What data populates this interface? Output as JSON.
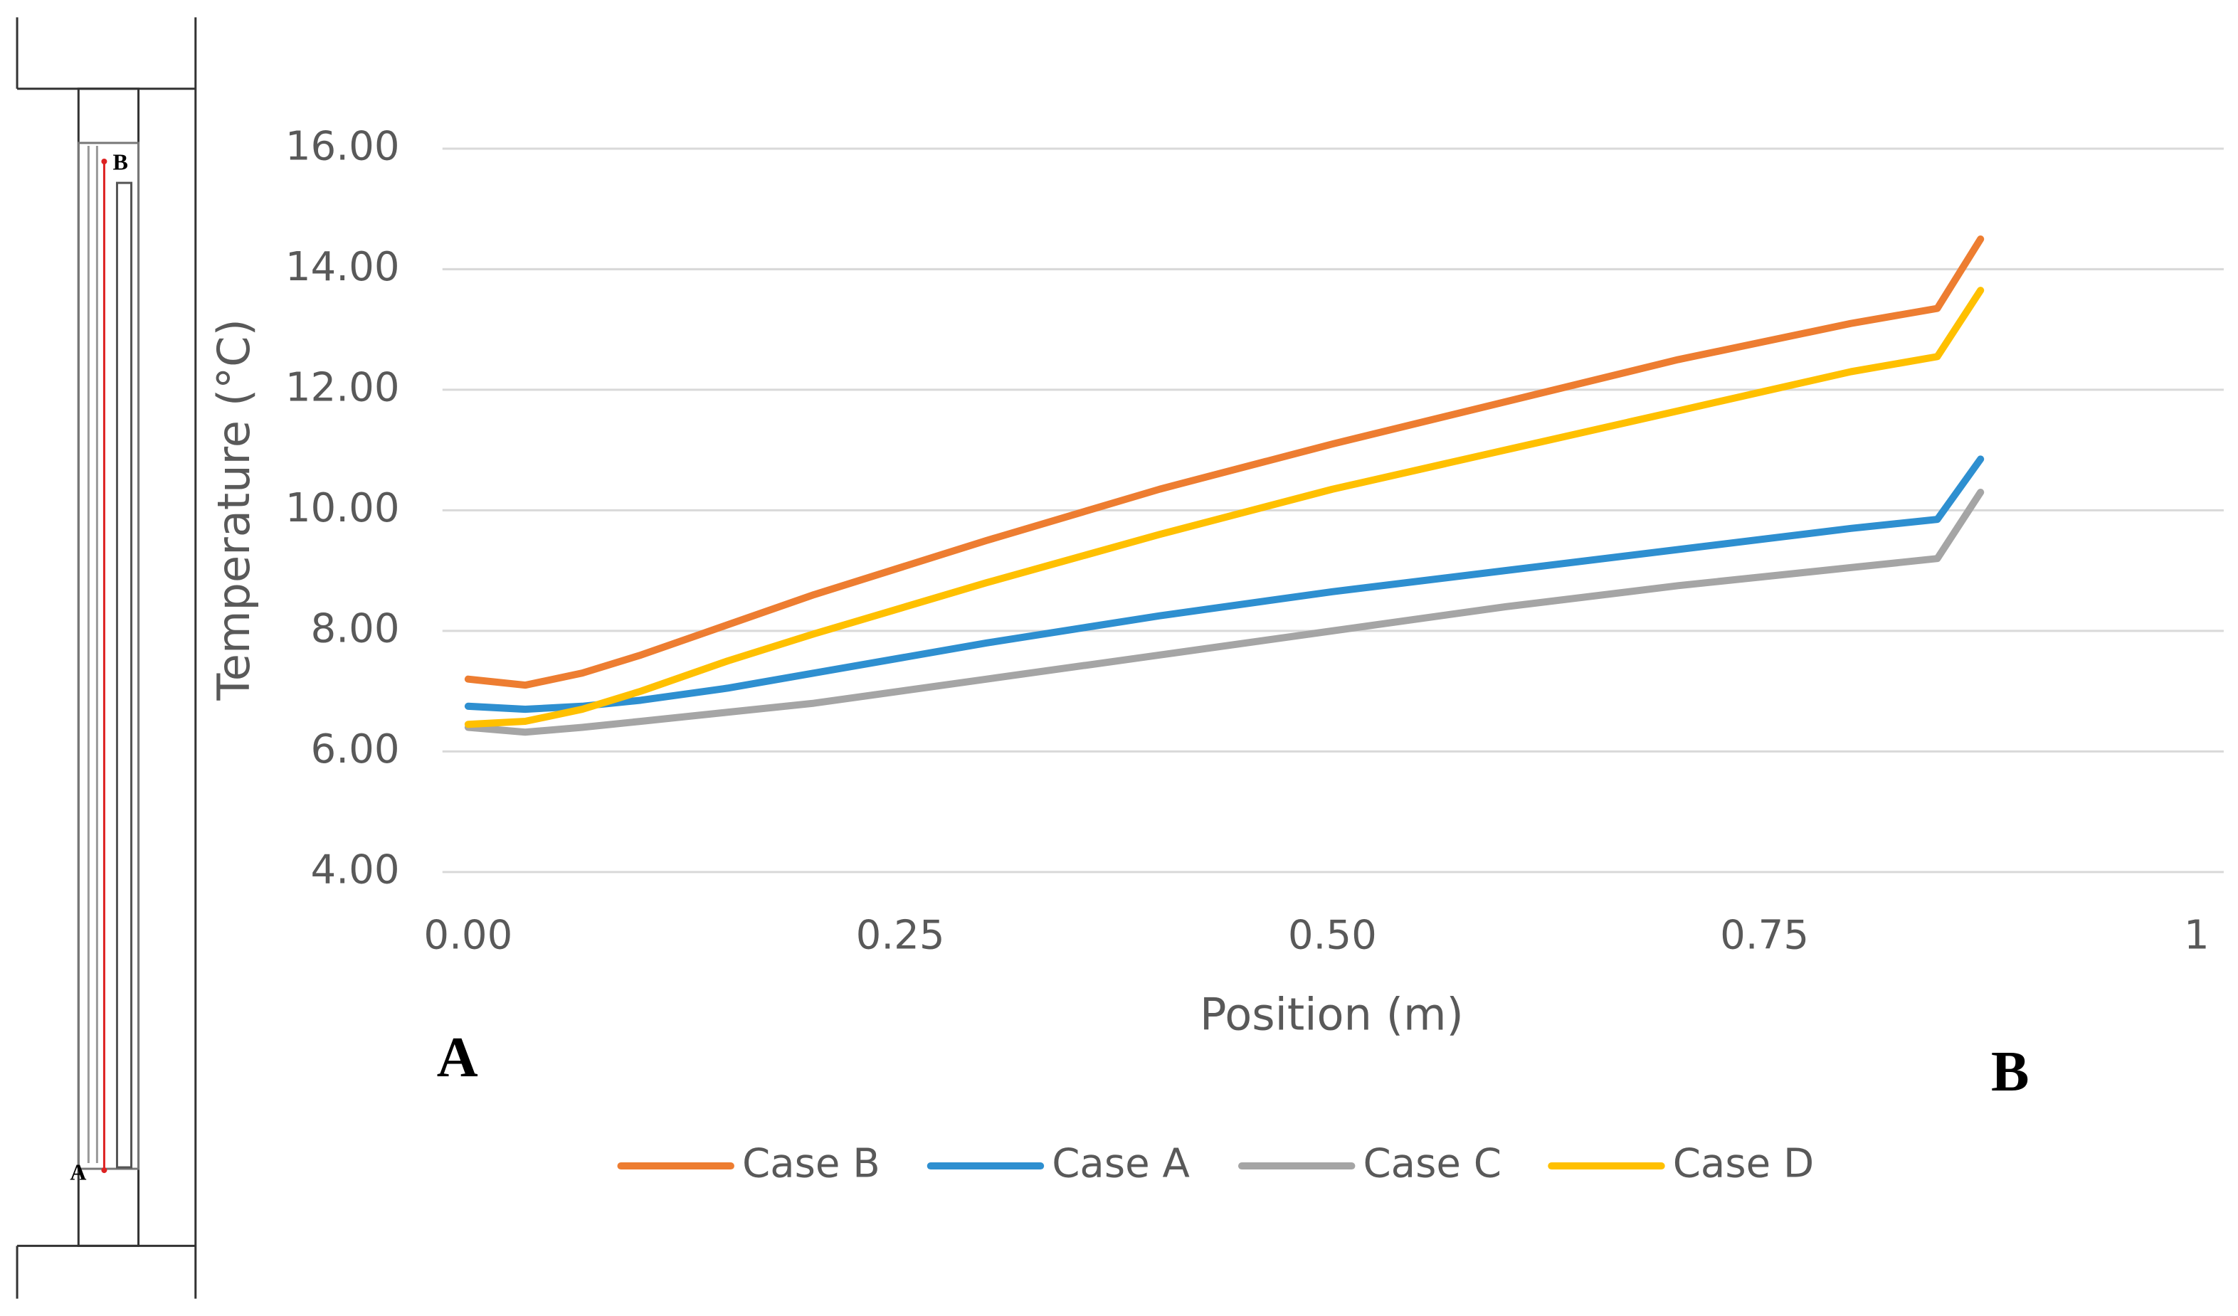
{
  "chart_data": {
    "type": "line",
    "xlabel": "Position (m)",
    "ylabel": "Temperature (°C)",
    "x": [
      0,
      0.033,
      0.066,
      0.1,
      0.15,
      0.2,
      0.3,
      0.4,
      0.5,
      0.6,
      0.7,
      0.8,
      0.85,
      0.875
    ],
    "series": [
      {
        "name": "Case B",
        "color": "#ED7D31",
        "values": [
          7.2,
          7.1,
          7.3,
          7.6,
          8.1,
          8.6,
          9.5,
          10.35,
          11.1,
          11.8,
          12.5,
          13.1,
          13.35,
          14.5
        ]
      },
      {
        "name": "Case A",
        "color": "#2E8FD0",
        "values": [
          6.75,
          6.7,
          6.75,
          6.85,
          7.05,
          7.3,
          7.8,
          8.25,
          8.65,
          9.0,
          9.35,
          9.7,
          9.85,
          10.85
        ]
      },
      {
        "name": "Case C",
        "color": "#A5A5A5",
        "values": [
          6.4,
          6.32,
          6.4,
          6.5,
          6.65,
          6.8,
          7.2,
          7.6,
          8.0,
          8.4,
          8.75,
          9.05,
          9.2,
          10.3
        ]
      },
      {
        "name": "Case D",
        "color": "#FFC000",
        "values": [
          6.45,
          6.5,
          6.7,
          7.0,
          7.5,
          7.95,
          8.8,
          9.6,
          10.35,
          11.0,
          11.65,
          12.3,
          12.55,
          13.65
        ]
      }
    ],
    "xlim": [
      0,
      1
    ],
    "xticks": [
      {
        "value": 0,
        "label": "0.00"
      },
      {
        "value": 0.25,
        "label": "0.25"
      },
      {
        "value": 0.5,
        "label": "0.50"
      },
      {
        "value": 0.75,
        "label": "0.75"
      },
      1
    ],
    "ylim": [
      4,
      16
    ],
    "yticks": [
      {
        "value": 4,
        "label": "4.00"
      },
      {
        "value": 6,
        "label": "6.00"
      },
      {
        "value": 8,
        "label": "8.00"
      },
      {
        "value": 10,
        "label": "10.00"
      },
      {
        "value": 12,
        "label": "12.00"
      },
      {
        "value": 14,
        "label": "14.00"
      },
      {
        "value": 16,
        "label": "16.00"
      }
    ],
    "grid": true,
    "legend": "bottom",
    "annotations": [
      "A",
      "B"
    ]
  },
  "diagram": {
    "labels": [
      "A",
      "B"
    ]
  }
}
